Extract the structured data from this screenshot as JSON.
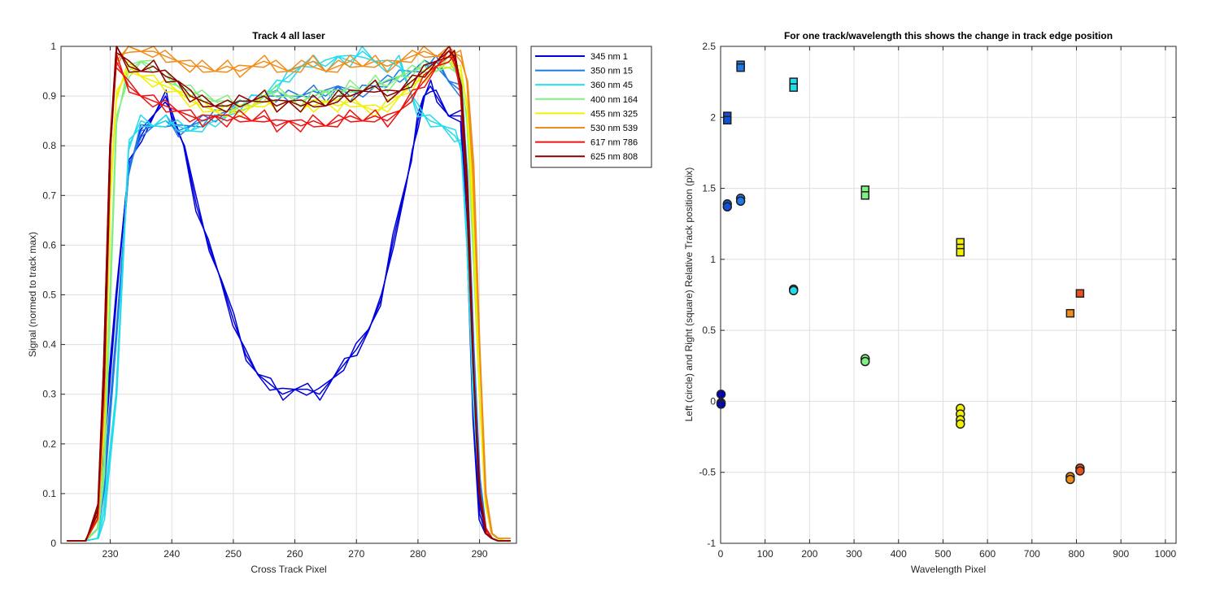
{
  "chart_data": [
    {
      "type": "line",
      "title": "Track 4  all laser",
      "xlabel": "Cross Track Pixel",
      "ylabel": "Signal (normed to track max)",
      "xlim": [
        222,
        296
      ],
      "ylim": [
        0,
        1
      ],
      "xticks": [
        230,
        240,
        250,
        260,
        270,
        280,
        290
      ],
      "yticks": [
        0,
        0.1,
        0.2,
        0.3,
        0.4,
        0.5,
        0.6,
        0.7,
        0.8,
        0.9,
        1
      ],
      "grid": true,
      "legend_position": "outside-right-top",
      "series": [
        {
          "name": "345 nm 1",
          "color": "#0000dd",
          "x": [
            223,
            226,
            228,
            229,
            231,
            233,
            235,
            237,
            239,
            240,
            242,
            244,
            246,
            248,
            250,
            252,
            254,
            256,
            258,
            260,
            262,
            264,
            266,
            268,
            270,
            272,
            274,
            276,
            278,
            279,
            280,
            281,
            282,
            283,
            285,
            287,
            288,
            289,
            290,
            291,
            292,
            293,
            294,
            295
          ],
          "y": [
            0.005,
            0.005,
            0.05,
            0.2,
            0.5,
            0.76,
            0.82,
            0.86,
            0.9,
            0.86,
            0.8,
            0.68,
            0.6,
            0.53,
            0.45,
            0.38,
            0.34,
            0.32,
            0.3,
            0.31,
            0.31,
            0.3,
            0.33,
            0.36,
            0.39,
            0.43,
            0.49,
            0.61,
            0.72,
            0.78,
            0.85,
            0.9,
            0.92,
            0.9,
            0.86,
            0.86,
            0.6,
            0.25,
            0.06,
            0.02,
            0.01,
            0.005,
            0.005,
            0.005
          ]
        },
        {
          "name": "350 nm 15",
          "color": "#1e78e6",
          "x": [
            223,
            226,
            228,
            229,
            231,
            233,
            235,
            237,
            239,
            241,
            243,
            245,
            247,
            249,
            251,
            253,
            255,
            257,
            259,
            261,
            263,
            265,
            267,
            269,
            271,
            273,
            275,
            277,
            279,
            281,
            283,
            285,
            287,
            288,
            289,
            290,
            291,
            292,
            293,
            294,
            295
          ],
          "y": [
            0.005,
            0.005,
            0.03,
            0.12,
            0.42,
            0.75,
            0.83,
            0.84,
            0.85,
            0.83,
            0.84,
            0.85,
            0.86,
            0.87,
            0.88,
            0.89,
            0.9,
            0.9,
            0.9,
            0.9,
            0.91,
            0.9,
            0.92,
            0.9,
            0.91,
            0.92,
            0.93,
            0.94,
            0.95,
            0.96,
            0.97,
            0.93,
            0.91,
            0.75,
            0.4,
            0.12,
            0.03,
            0.01,
            0.005,
            0.005,
            0.005
          ]
        },
        {
          "name": "360 nm 45",
          "color": "#22dcec",
          "x": [
            223,
            226,
            228,
            229,
            231,
            233,
            235,
            237,
            239,
            241,
            243,
            245,
            247,
            249,
            251,
            253,
            255,
            257,
            259,
            261,
            263,
            265,
            267,
            269,
            271,
            273,
            275,
            277,
            279,
            280,
            282,
            284,
            286,
            287,
            288,
            289,
            290,
            291,
            292,
            293,
            294,
            295
          ],
          "y": [
            0.005,
            0.005,
            0.01,
            0.06,
            0.3,
            0.8,
            0.85,
            0.84,
            0.85,
            0.84,
            0.83,
            0.84,
            0.85,
            0.86,
            0.88,
            0.89,
            0.9,
            0.92,
            0.94,
            0.96,
            0.97,
            0.96,
            0.98,
            0.97,
            0.99,
            0.97,
            0.96,
            0.97,
            0.9,
            0.87,
            0.85,
            0.84,
            0.82,
            0.8,
            0.6,
            0.3,
            0.1,
            0.03,
            0.01,
            0.005,
            0.005,
            0.005
          ]
        },
        {
          "name": "400 nm 164",
          "color": "#80f080",
          "x": [
            223,
            226,
            228,
            229,
            230,
            231,
            233,
            235,
            237,
            239,
            241,
            243,
            245,
            247,
            249,
            251,
            253,
            255,
            257,
            259,
            261,
            263,
            265,
            267,
            269,
            271,
            273,
            275,
            277,
            279,
            281,
            283,
            285,
            287,
            288,
            289,
            290,
            291,
            292,
            293,
            294,
            295
          ],
          "y": [
            0.005,
            0.005,
            0.03,
            0.15,
            0.5,
            0.85,
            0.95,
            0.97,
            0.96,
            0.94,
            0.92,
            0.91,
            0.9,
            0.89,
            0.89,
            0.88,
            0.88,
            0.9,
            0.91,
            0.9,
            0.89,
            0.9,
            0.91,
            0.9,
            0.92,
            0.91,
            0.93,
            0.92,
            0.94,
            0.95,
            0.96,
            0.95,
            0.97,
            0.93,
            0.85,
            0.6,
            0.3,
            0.08,
            0.02,
            0.01,
            0.005,
            0.005
          ]
        },
        {
          "name": "455 nm 325",
          "color": "#f0f000",
          "x": [
            223,
            226,
            228,
            229,
            230,
            231,
            233,
            235,
            237,
            239,
            241,
            243,
            245,
            247,
            249,
            251,
            253,
            255,
            257,
            259,
            261,
            263,
            265,
            267,
            269,
            271,
            273,
            275,
            277,
            279,
            281,
            283,
            285,
            287,
            288,
            289,
            290,
            291,
            292,
            293,
            294,
            295
          ],
          "y": [
            0.005,
            0.005,
            0.05,
            0.25,
            0.7,
            0.9,
            0.96,
            0.94,
            0.93,
            0.92,
            0.91,
            0.89,
            0.88,
            0.87,
            0.87,
            0.87,
            0.88,
            0.89,
            0.88,
            0.89,
            0.88,
            0.88,
            0.89,
            0.88,
            0.89,
            0.88,
            0.87,
            0.88,
            0.9,
            0.92,
            0.94,
            0.96,
            0.97,
            0.95,
            0.88,
            0.65,
            0.3,
            0.08,
            0.02,
            0.01,
            0.005,
            0.005
          ]
        },
        {
          "name": "530 nm 539",
          "color": "#f08c19",
          "x": [
            223,
            226,
            228,
            229,
            230,
            231,
            233,
            235,
            237,
            239,
            241,
            243,
            245,
            247,
            249,
            251,
            253,
            255,
            257,
            259,
            261,
            263,
            265,
            267,
            269,
            271,
            273,
            275,
            277,
            279,
            281,
            283,
            285,
            287,
            288,
            289,
            290,
            291,
            292,
            293,
            294,
            295
          ],
          "y": [
            0.005,
            0.005,
            0.05,
            0.3,
            0.8,
            0.97,
            1.0,
            0.99,
            0.99,
            0.98,
            0.97,
            0.96,
            0.96,
            0.95,
            0.96,
            0.95,
            0.96,
            0.97,
            0.96,
            0.95,
            0.96,
            0.97,
            0.95,
            0.96,
            0.97,
            0.96,
            0.97,
            0.96,
            0.97,
            0.98,
            0.99,
            0.98,
            0.99,
            0.98,
            0.93,
            0.75,
            0.4,
            0.1,
            0.02,
            0.01,
            0.01,
            0.01
          ]
        },
        {
          "name": "617 nm 786",
          "color": "#ee1111",
          "x": [
            223,
            226,
            228,
            229,
            230,
            231,
            233,
            235,
            237,
            239,
            241,
            243,
            245,
            247,
            249,
            251,
            253,
            255,
            257,
            259,
            261,
            263,
            265,
            267,
            269,
            271,
            273,
            275,
            277,
            279,
            281,
            283,
            285,
            286,
            287,
            288,
            289,
            290,
            291,
            292,
            293,
            294,
            295
          ],
          "y": [
            0.005,
            0.005,
            0.06,
            0.35,
            0.8,
            0.97,
            0.92,
            0.9,
            0.89,
            0.88,
            0.87,
            0.86,
            0.85,
            0.86,
            0.85,
            0.86,
            0.85,
            0.86,
            0.84,
            0.85,
            0.84,
            0.85,
            0.84,
            0.85,
            0.86,
            0.85,
            0.86,
            0.85,
            0.87,
            0.9,
            0.93,
            0.96,
            0.98,
            0.97,
            0.9,
            0.7,
            0.35,
            0.1,
            0.03,
            0.01,
            0.005,
            0.005,
            0.005
          ]
        },
        {
          "name": "625 nm 808",
          "color": "#8c0000",
          "x": [
            223,
            226,
            228,
            229,
            230,
            231,
            233,
            235,
            237,
            239,
            241,
            243,
            245,
            247,
            249,
            251,
            253,
            255,
            257,
            259,
            261,
            263,
            265,
            267,
            269,
            271,
            273,
            275,
            277,
            279,
            281,
            283,
            285,
            286,
            287,
            288,
            289,
            290,
            291,
            292,
            293,
            294,
            295
          ],
          "y": [
            0.005,
            0.005,
            0.07,
            0.35,
            0.8,
            1.0,
            0.96,
            0.95,
            0.96,
            0.94,
            0.93,
            0.9,
            0.89,
            0.88,
            0.88,
            0.89,
            0.89,
            0.9,
            0.88,
            0.89,
            0.88,
            0.89,
            0.88,
            0.9,
            0.9,
            0.91,
            0.92,
            0.9,
            0.91,
            0.93,
            0.95,
            0.97,
            0.99,
            0.98,
            0.92,
            0.7,
            0.35,
            0.1,
            0.02,
            0.01,
            0.005,
            0.005,
            0.005
          ]
        }
      ]
    },
    {
      "type": "scatter",
      "title": "For one track/wavelength this shows the change in track edge position",
      "xlabel": "Wavelength Pixel",
      "ylabel": "Left (circle) and Right (square) Relative Track position (pix)",
      "xlim": [
        0,
        1024
      ],
      "ylim": [
        -1,
        2.5
      ],
      "xticks": [
        0,
        100,
        200,
        300,
        400,
        500,
        600,
        700,
        800,
        900,
        1000
      ],
      "yticks": [
        -1,
        -0.5,
        0,
        0.5,
        1,
        1.5,
        2,
        2.5
      ],
      "grid": true,
      "series": [
        {
          "marker": "circle",
          "points": [
            {
              "x": 1,
              "y": 0.05,
              "color": "#0000cc"
            },
            {
              "x": 1,
              "y": -0.01,
              "color": "#0000cc"
            },
            {
              "x": 1,
              "y": -0.02,
              "color": "#0000cc"
            },
            {
              "x": 15,
              "y": 1.39,
              "color": "#1050d8"
            },
            {
              "x": 15,
              "y": 1.37,
              "color": "#1050d8"
            },
            {
              "x": 45,
              "y": 1.43,
              "color": "#1e78e6"
            },
            {
              "x": 45,
              "y": 1.41,
              "color": "#1e78e6"
            },
            {
              "x": 164,
              "y": 0.79,
              "color": "#22dcec"
            },
            {
              "x": 164,
              "y": 0.78,
              "color": "#22dcec"
            },
            {
              "x": 325,
              "y": 0.3,
              "color": "#80f080"
            },
            {
              "x": 325,
              "y": 0.28,
              "color": "#80f080"
            },
            {
              "x": 539,
              "y": -0.05,
              "color": "#f0f000"
            },
            {
              "x": 539,
              "y": -0.09,
              "color": "#f0f000"
            },
            {
              "x": 539,
              "y": -0.13,
              "color": "#f0f000"
            },
            {
              "x": 539,
              "y": -0.16,
              "color": "#f0f000"
            },
            {
              "x": 786,
              "y": -0.53,
              "color": "#f08c19"
            },
            {
              "x": 786,
              "y": -0.55,
              "color": "#f08c19"
            },
            {
              "x": 808,
              "y": -0.47,
              "color": "#e85020"
            },
            {
              "x": 808,
              "y": -0.49,
              "color": "#e85020"
            }
          ]
        },
        {
          "marker": "square",
          "points": [
            {
              "x": 15,
              "y": 2.01,
              "color": "#1050d8"
            },
            {
              "x": 15,
              "y": 1.98,
              "color": "#1050d8"
            },
            {
              "x": 45,
              "y": 2.37,
              "color": "#1e78e6"
            },
            {
              "x": 45,
              "y": 2.35,
              "color": "#1e78e6"
            },
            {
              "x": 164,
              "y": 2.25,
              "color": "#22dcec"
            },
            {
              "x": 164,
              "y": 2.21,
              "color": "#22dcec"
            },
            {
              "x": 325,
              "y": 1.49,
              "color": "#80f080"
            },
            {
              "x": 325,
              "y": 1.45,
              "color": "#80f080"
            },
            {
              "x": 539,
              "y": 1.12,
              "color": "#f0f000"
            },
            {
              "x": 539,
              "y": 1.08,
              "color": "#f0f000"
            },
            {
              "x": 539,
              "y": 1.05,
              "color": "#f0f000"
            },
            {
              "x": 786,
              "y": 0.62,
              "color": "#f08c19"
            },
            {
              "x": 808,
              "y": 0.76,
              "color": "#e85020"
            }
          ]
        }
      ]
    }
  ]
}
